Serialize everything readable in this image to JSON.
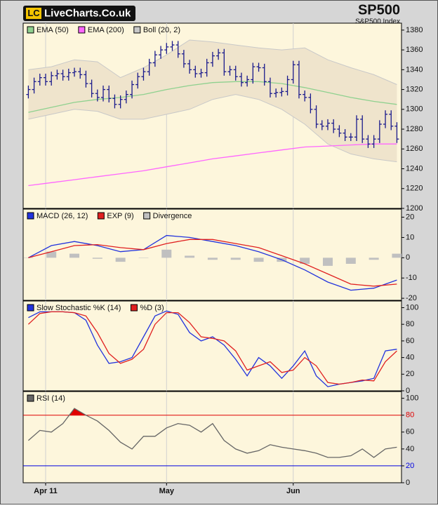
{
  "header": {
    "logo_mark": "LC",
    "logo_text": "LiveCharts.Co.uk"
  },
  "chart_data": [
    {
      "type": "ohlc",
      "title": "SP500",
      "subtitle": "S&P500 Index",
      "ylim": [
        1200,
        1387
      ],
      "yticks": [
        1200,
        1220,
        1240,
        1260,
        1280,
        1300,
        1320,
        1340,
        1360,
        1380
      ],
      "series": [
        {
          "name": "EMA (50)",
          "type": "line",
          "color": "#8fd18f",
          "x": [
            0,
            4,
            8,
            12,
            16,
            20,
            24,
            28,
            32,
            36,
            40,
            44,
            48,
            52,
            56,
            60,
            64
          ],
          "values": [
            1297,
            1302,
            1307,
            1310,
            1312,
            1315,
            1320,
            1324,
            1327,
            1328,
            1328,
            1326,
            1322,
            1317,
            1312,
            1308,
            1305
          ]
        },
        {
          "name": "EMA (200)",
          "type": "line",
          "color": "#ff66ff",
          "x": [
            0,
            4,
            8,
            12,
            16,
            20,
            24,
            28,
            32,
            36,
            40,
            44,
            48,
            52,
            56,
            60,
            64
          ],
          "values": [
            1223,
            1226,
            1229,
            1232,
            1235,
            1238,
            1242,
            1246,
            1250,
            1253,
            1256,
            1259,
            1262,
            1263,
            1264,
            1265,
            1265
          ]
        },
        {
          "name": "Boll (20, 2)",
          "type": "band",
          "color": "#c8c8c8",
          "fill": "#efe4cc",
          "x": [
            0,
            4,
            8,
            12,
            16,
            20,
            24,
            28,
            32,
            36,
            40,
            44,
            48,
            52,
            56,
            60,
            64
          ],
          "upper": [
            1340,
            1343,
            1350,
            1348,
            1332,
            1342,
            1355,
            1370,
            1368,
            1365,
            1362,
            1360,
            1362,
            1350,
            1342,
            1335,
            1325
          ],
          "lower": [
            1290,
            1295,
            1300,
            1298,
            1290,
            1290,
            1295,
            1300,
            1310,
            1315,
            1310,
            1300,
            1285,
            1265,
            1255,
            1250,
            1247
          ]
        },
        {
          "type": "ohlc",
          "color": "#1a1a8c",
          "x": [
            0,
            1,
            2,
            3,
            4,
            5,
            6,
            7,
            8,
            9,
            10,
            11,
            12,
            13,
            14,
            15,
            16,
            17,
            18,
            19,
            20,
            21,
            22,
            23,
            24,
            25,
            26,
            27,
            28,
            29,
            30,
            31,
            32,
            33,
            34,
            35,
            36,
            37,
            38,
            39,
            40,
            41,
            42,
            43,
            44,
            45,
            46,
            47,
            48,
            49,
            50,
            51,
            52,
            53,
            54,
            55,
            56,
            57,
            58,
            59,
            60,
            61,
            62,
            63,
            64
          ],
          "open": [
            1315,
            1320,
            1328,
            1332,
            1328,
            1334,
            1336,
            1333,
            1337,
            1338,
            1335,
            1326,
            1316,
            1312,
            1320,
            1311,
            1305,
            1310,
            1315,
            1325,
            1333,
            1338,
            1347,
            1355,
            1360,
            1363,
            1365,
            1356,
            1346,
            1340,
            1336,
            1337,
            1347,
            1354,
            1357,
            1338,
            1340,
            1333,
            1327,
            1330,
            1343,
            1342,
            1328,
            1316,
            1317,
            1318,
            1330,
            1345,
            1315,
            1312,
            1300,
            1285,
            1283,
            1286,
            1280,
            1276,
            1272,
            1272,
            1290,
            1270,
            1265,
            1270,
            1285,
            1295,
            1283
          ],
          "high": [
            1324,
            1332,
            1336,
            1336,
            1338,
            1340,
            1340,
            1341,
            1342,
            1342,
            1339,
            1330,
            1320,
            1324,
            1324,
            1315,
            1314,
            1319,
            1329,
            1337,
            1342,
            1351,
            1359,
            1364,
            1367,
            1369,
            1369,
            1360,
            1350,
            1344,
            1341,
            1351,
            1358,
            1361,
            1361,
            1344,
            1344,
            1337,
            1334,
            1347,
            1347,
            1346,
            1332,
            1321,
            1322,
            1334,
            1349,
            1349,
            1319,
            1316,
            1304,
            1289,
            1290,
            1290,
            1284,
            1280,
            1276,
            1294,
            1294,
            1274,
            1274,
            1289,
            1299,
            1299,
            1287
          ],
          "low": [
            1311,
            1316,
            1324,
            1324,
            1324,
            1330,
            1329,
            1329,
            1333,
            1331,
            1322,
            1312,
            1308,
            1308,
            1307,
            1301,
            1301,
            1306,
            1311,
            1321,
            1329,
            1334,
            1343,
            1351,
            1356,
            1359,
            1352,
            1342,
            1336,
            1332,
            1332,
            1333,
            1343,
            1350,
            1334,
            1334,
            1329,
            1323,
            1323,
            1326,
            1338,
            1324,
            1312,
            1312,
            1313,
            1314,
            1326,
            1311,
            1308,
            1296,
            1281,
            1279,
            1279,
            1276,
            1272,
            1268,
            1268,
            1268,
            1266,
            1261,
            1261,
            1266,
            1281,
            1279,
            1266
          ],
          "close": [
            1320,
            1328,
            1332,
            1328,
            1334,
            1336,
            1333,
            1337,
            1338,
            1335,
            1326,
            1316,
            1312,
            1320,
            1311,
            1305,
            1310,
            1315,
            1325,
            1333,
            1338,
            1347,
            1355,
            1360,
            1363,
            1365,
            1356,
            1346,
            1340,
            1336,
            1337,
            1347,
            1354,
            1357,
            1338,
            1340,
            1333,
            1327,
            1330,
            1343,
            1342,
            1328,
            1316,
            1317,
            1318,
            1330,
            1345,
            1315,
            1312,
            1300,
            1285,
            1283,
            1286,
            1280,
            1276,
            1272,
            1272,
            1290,
            1270,
            1265,
            1270,
            1285,
            1295,
            1283,
            1270
          ]
        }
      ]
    },
    {
      "type": "line",
      "ylim": [
        -21,
        24
      ],
      "yticks": [
        -20,
        -10,
        0,
        10,
        20
      ],
      "series": [
        {
          "name": "MACD (26, 12)",
          "type": "line",
          "color": "#2233dd",
          "x": [
            0,
            4,
            8,
            12,
            16,
            20,
            24,
            28,
            32,
            36,
            40,
            44,
            48,
            52,
            56,
            60,
            64
          ],
          "values": [
            0,
            6,
            8,
            6,
            3,
            4,
            11,
            10,
            8,
            6,
            3,
            -1,
            -6,
            -12,
            -16,
            -15,
            -11
          ]
        },
        {
          "name": "EXP (9)",
          "type": "line",
          "color": "#e02020",
          "x": [
            0,
            4,
            8,
            12,
            16,
            20,
            24,
            28,
            32,
            36,
            40,
            44,
            48,
            52,
            56,
            60,
            64
          ],
          "values": [
            0,
            3,
            6,
            6.5,
            5,
            4,
            7,
            9,
            9,
            7,
            5,
            1,
            -3,
            -8,
            -13,
            -14,
            -13
          ]
        },
        {
          "name": "Divergence",
          "type": "bar",
          "color": "#c0c0c0",
          "x": [
            0,
            4,
            8,
            12,
            16,
            20,
            24,
            28,
            32,
            36,
            40,
            44,
            48,
            52,
            56,
            60,
            64
          ],
          "values": [
            0,
            3,
            2,
            -0.5,
            -2,
            0,
            4,
            1,
            -1,
            -1,
            -2,
            -2,
            -3,
            -4,
            -3,
            -1,
            2
          ]
        }
      ]
    },
    {
      "type": "line",
      "ylim": [
        0,
        108
      ],
      "yticks": [
        0,
        20,
        40,
        60,
        80,
        100
      ],
      "series": [
        {
          "name": "Slow Stochastic %K (14)",
          "type": "line",
          "color": "#2233dd",
          "x": [
            0,
            2,
            4,
            6,
            8,
            10,
            12,
            14,
            16,
            18,
            20,
            22,
            24,
            26,
            28,
            30,
            32,
            34,
            36,
            38,
            40,
            42,
            44,
            46,
            48,
            50,
            52,
            54,
            56,
            58,
            60,
            62,
            64
          ],
          "values": [
            88,
            95,
            95,
            95,
            94,
            85,
            55,
            33,
            35,
            40,
            65,
            90,
            96,
            92,
            70,
            60,
            65,
            55,
            38,
            18,
            40,
            30,
            15,
            30,
            48,
            18,
            5,
            8,
            10,
            12,
            15,
            48,
            50
          ]
        },
        {
          "name": "%D (3)",
          "type": "line",
          "color": "#e02020",
          "x": [
            0,
            2,
            4,
            6,
            8,
            10,
            12,
            14,
            16,
            18,
            20,
            22,
            24,
            26,
            28,
            30,
            32,
            34,
            36,
            38,
            40,
            42,
            44,
            46,
            48,
            50,
            52,
            54,
            56,
            58,
            60,
            62,
            64
          ],
          "values": [
            80,
            93,
            95,
            95,
            94,
            90,
            70,
            45,
            33,
            38,
            50,
            80,
            94,
            94,
            82,
            65,
            63,
            60,
            48,
            25,
            30,
            35,
            22,
            25,
            40,
            30,
            10,
            8,
            10,
            13,
            12,
            35,
            48
          ]
        }
      ]
    },
    {
      "type": "line",
      "ylim": [
        0,
        108
      ],
      "yticks": [
        0,
        20,
        40,
        60,
        80,
        100
      ],
      "xlim": [
        -0.9,
        64.8
      ],
      "xticks": [
        {
          "value": 3,
          "label": "Apr 11"
        },
        {
          "value": 24,
          "label": "May"
        },
        {
          "value": 46,
          "label": "Jun"
        }
      ],
      "levels": [
        {
          "value": 80,
          "color": "#e00000"
        },
        {
          "value": 20,
          "color": "#0000e0"
        }
      ],
      "series": [
        {
          "name": "RSI (14)",
          "type": "line",
          "color": "#666666",
          "overbought_fill": "#e00000",
          "x": [
            0,
            2,
            4,
            6,
            8,
            10,
            12,
            14,
            16,
            18,
            20,
            22,
            24,
            26,
            28,
            30,
            32,
            34,
            36,
            38,
            40,
            42,
            44,
            46,
            48,
            50,
            52,
            54,
            56,
            58,
            60,
            62,
            64
          ],
          "values": [
            50,
            62,
            60,
            70,
            88,
            80,
            73,
            62,
            48,
            40,
            55,
            55,
            65,
            70,
            68,
            60,
            70,
            50,
            40,
            35,
            38,
            45,
            42,
            40,
            38,
            35,
            30,
            30,
            32,
            40,
            30,
            40,
            42
          ]
        }
      ]
    }
  ]
}
